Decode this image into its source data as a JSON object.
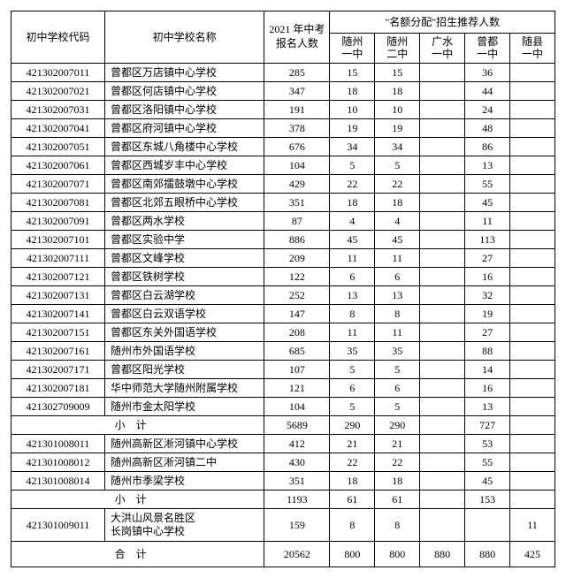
{
  "headers": {
    "code": "初中学校代码",
    "name": "初中学校名称",
    "enroll": "2021 年中考\n报名人数",
    "quota_group": "\"名额分配\"招生推荐人数",
    "cols": [
      "随州\n一中",
      "随州\n二中",
      "广水\n一中",
      "曾都\n一中",
      "随县\n一中"
    ]
  },
  "sections": [
    {
      "rows": [
        {
          "code": "421302007011",
          "name": "曾都区万店镇中心学校",
          "enroll": "285",
          "q": [
            "15",
            "15",
            "",
            "36",
            ""
          ]
        },
        {
          "code": "421302007021",
          "name": "曾都区何店镇中心学校",
          "enroll": "347",
          "q": [
            "18",
            "18",
            "",
            "44",
            ""
          ]
        },
        {
          "code": "421302007031",
          "name": "曾都区洛阳镇中心学校",
          "enroll": "191",
          "q": [
            "10",
            "10",
            "",
            "24",
            ""
          ]
        },
        {
          "code": "421302007041",
          "name": "曾都区府河镇中心学校",
          "enroll": "378",
          "q": [
            "19",
            "19",
            "",
            "48",
            ""
          ]
        },
        {
          "code": "421302007051",
          "name": "曾都区东城八角楼中心学校",
          "enroll": "676",
          "q": [
            "34",
            "34",
            "",
            "86",
            ""
          ]
        },
        {
          "code": "421302007061",
          "name": "曾都区西城岁丰中心学校",
          "enroll": "104",
          "q": [
            "5",
            "5",
            "",
            "13",
            ""
          ]
        },
        {
          "code": "421302007071",
          "name": "曾都区南郊擂鼓墩中心学校",
          "enroll": "429",
          "q": [
            "22",
            "22",
            "",
            "55",
            ""
          ]
        },
        {
          "code": "421302007081",
          "name": "曾都区北郊五眼桥中心学校",
          "enroll": "351",
          "q": [
            "18",
            "18",
            "",
            "45",
            ""
          ]
        },
        {
          "code": "421302007091",
          "name": "曾都区两水学校",
          "enroll": "87",
          "q": [
            "4",
            "4",
            "",
            "11",
            ""
          ]
        },
        {
          "code": "421302007101",
          "name": "曾都区实验中学",
          "enroll": "886",
          "q": [
            "45",
            "45",
            "",
            "113",
            ""
          ]
        },
        {
          "code": "421302007111",
          "name": "曾都区文峰学校",
          "enroll": "209",
          "q": [
            "11",
            "11",
            "",
            "27",
            ""
          ]
        },
        {
          "code": "421302007121",
          "name": "曾都区铁树学校",
          "enroll": "122",
          "q": [
            "6",
            "6",
            "",
            "16",
            ""
          ]
        },
        {
          "code": "421302007131",
          "name": "曾都区白云湖学校",
          "enroll": "252",
          "q": [
            "13",
            "13",
            "",
            "32",
            ""
          ]
        },
        {
          "code": "421302007141",
          "name": "曾都区白云双语学校",
          "enroll": "147",
          "q": [
            "8",
            "8",
            "",
            "19",
            ""
          ]
        },
        {
          "code": "421302007151",
          "name": "曾都区东关外国语学校",
          "enroll": "208",
          "q": [
            "11",
            "11",
            "",
            "27",
            ""
          ]
        },
        {
          "code": "421302007161",
          "name": "随州市外国语学校",
          "enroll": "685",
          "q": [
            "35",
            "35",
            "",
            "88",
            ""
          ]
        },
        {
          "code": "421302007171",
          "name": "曾都区阳光学校",
          "enroll": "107",
          "q": [
            "5",
            "5",
            "",
            "14",
            ""
          ]
        },
        {
          "code": "421302007181",
          "name": "华中师范大学随州附属学校",
          "enroll": "121",
          "q": [
            "6",
            "6",
            "",
            "16",
            ""
          ]
        },
        {
          "code": "421302709009",
          "name": "随州市金太阳学校",
          "enroll": "104",
          "q": [
            "5",
            "5",
            "",
            "13",
            ""
          ]
        }
      ],
      "subtotal": {
        "label": "小计",
        "enroll": "5689",
        "q": [
          "290",
          "290",
          "",
          "727",
          ""
        ]
      }
    },
    {
      "rows": [
        {
          "code": "421301008011",
          "name": "随州高新区淅河镇中心学校",
          "enroll": "412",
          "q": [
            "21",
            "21",
            "",
            "53",
            ""
          ]
        },
        {
          "code": "421301008012",
          "name": "随州高新区淅河镇二中",
          "enroll": "430",
          "q": [
            "22",
            "22",
            "",
            "55",
            ""
          ]
        },
        {
          "code": "421301008014",
          "name": "随州市季梁学校",
          "enroll": "351",
          "q": [
            "18",
            "18",
            "",
            "45",
            ""
          ]
        }
      ],
      "subtotal": {
        "label": "小计",
        "enroll": "1193",
        "q": [
          "61",
          "61",
          "",
          "153",
          ""
        ]
      }
    },
    {
      "rows": [
        {
          "code": "421301009011",
          "name": "大洪山风景名胜区\n长岗镇中心学校",
          "enroll": "159",
          "q": [
            "8",
            "8",
            "",
            "",
            "11"
          ]
        }
      ]
    }
  ],
  "total": {
    "label": "合计",
    "enroll": "20562",
    "q": [
      "800",
      "800",
      "880",
      "880",
      "425"
    ]
  }
}
